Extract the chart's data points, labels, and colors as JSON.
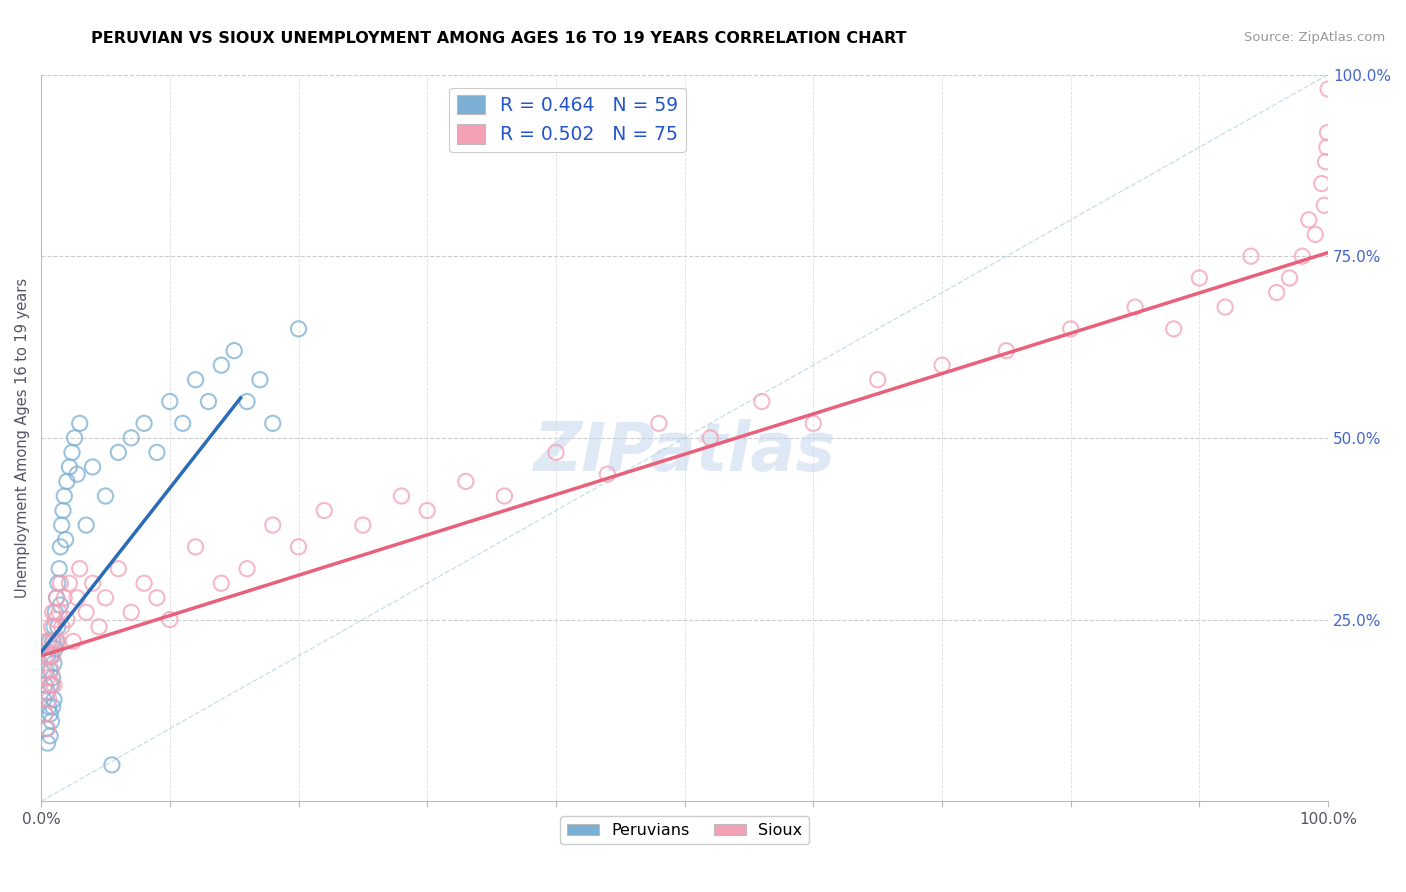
{
  "title": "PERUVIAN VS SIOUX UNEMPLOYMENT AMONG AGES 16 TO 19 YEARS CORRELATION CHART",
  "source_text": "Source: ZipAtlas.com",
  "ylabel": "Unemployment Among Ages 16 to 19 years",
  "xlim": [
    0.0,
    1.0
  ],
  "ylim": [
    0.0,
    1.0
  ],
  "yticks": [
    0.25,
    0.5,
    0.75,
    1.0
  ],
  "ytick_labels": [
    "25.0%",
    "50.0%",
    "75.0%",
    "100.0%"
  ],
  "peruvian_color": "#7BAfd4",
  "sioux_color": "#F4A0B5",
  "peruvian_line_color": "#2B6CB8",
  "sioux_line_color": "#E8607A",
  "watermark": "ZIPatlas",
  "legend_label_1": "R = 0.464   N = 59",
  "legend_label_2": "R = 0.502   N = 75",
  "peruvian_x": [
    0.002,
    0.003,
    0.003,
    0.004,
    0.004,
    0.005,
    0.005,
    0.005,
    0.006,
    0.006,
    0.007,
    0.007,
    0.007,
    0.008,
    0.008,
    0.008,
    0.009,
    0.009,
    0.009,
    0.01,
    0.01,
    0.01,
    0.011,
    0.011,
    0.012,
    0.012,
    0.013,
    0.013,
    0.014,
    0.015,
    0.015,
    0.016,
    0.017,
    0.018,
    0.019,
    0.02,
    0.022,
    0.024,
    0.026,
    0.028,
    0.03,
    0.035,
    0.04,
    0.05,
    0.055,
    0.06,
    0.07,
    0.08,
    0.09,
    0.1,
    0.11,
    0.12,
    0.13,
    0.14,
    0.15,
    0.16,
    0.17,
    0.18,
    0.2
  ],
  "peruvian_y": [
    0.14,
    0.16,
    0.12,
    0.18,
    0.1,
    0.2,
    0.15,
    0.08,
    0.22,
    0.13,
    0.18,
    0.12,
    0.09,
    0.2,
    0.16,
    0.11,
    0.22,
    0.17,
    0.13,
    0.24,
    0.19,
    0.14,
    0.26,
    0.21,
    0.28,
    0.22,
    0.3,
    0.24,
    0.32,
    0.35,
    0.27,
    0.38,
    0.4,
    0.42,
    0.36,
    0.44,
    0.46,
    0.48,
    0.5,
    0.45,
    0.52,
    0.38,
    0.46,
    0.42,
    0.05,
    0.48,
    0.5,
    0.52,
    0.48,
    0.55,
    0.52,
    0.58,
    0.55,
    0.6,
    0.62,
    0.55,
    0.58,
    0.52,
    0.65
  ],
  "sioux_x": [
    0.002,
    0.003,
    0.003,
    0.004,
    0.004,
    0.005,
    0.005,
    0.006,
    0.006,
    0.007,
    0.007,
    0.008,
    0.008,
    0.009,
    0.009,
    0.01,
    0.01,
    0.011,
    0.012,
    0.013,
    0.014,
    0.015,
    0.016,
    0.018,
    0.02,
    0.022,
    0.025,
    0.028,
    0.03,
    0.035,
    0.04,
    0.045,
    0.05,
    0.06,
    0.07,
    0.08,
    0.09,
    0.1,
    0.12,
    0.14,
    0.16,
    0.18,
    0.2,
    0.22,
    0.25,
    0.28,
    0.3,
    0.33,
    0.36,
    0.4,
    0.44,
    0.48,
    0.52,
    0.56,
    0.6,
    0.65,
    0.7,
    0.75,
    0.8,
    0.85,
    0.88,
    0.9,
    0.92,
    0.94,
    0.96,
    0.97,
    0.98,
    0.985,
    0.99,
    0.995,
    0.997,
    0.998,
    0.999,
    0.9995,
    1.0
  ],
  "sioux_y": [
    0.18,
    0.12,
    0.2,
    0.15,
    0.22,
    0.1,
    0.17,
    0.2,
    0.14,
    0.22,
    0.16,
    0.24,
    0.18,
    0.26,
    0.2,
    0.22,
    0.16,
    0.25,
    0.28,
    0.22,
    0.26,
    0.3,
    0.24,
    0.28,
    0.25,
    0.3,
    0.22,
    0.28,
    0.32,
    0.26,
    0.3,
    0.24,
    0.28,
    0.32,
    0.26,
    0.3,
    0.28,
    0.25,
    0.35,
    0.3,
    0.32,
    0.38,
    0.35,
    0.4,
    0.38,
    0.42,
    0.4,
    0.44,
    0.42,
    0.48,
    0.45,
    0.52,
    0.5,
    0.55,
    0.52,
    0.58,
    0.6,
    0.62,
    0.65,
    0.68,
    0.65,
    0.72,
    0.68,
    0.75,
    0.7,
    0.72,
    0.75,
    0.8,
    0.78,
    0.85,
    0.82,
    0.88,
    0.9,
    0.92,
    0.98
  ],
  "peruvian_line_x": [
    0.0,
    0.155
  ],
  "peruvian_line_y": [
    0.205,
    0.555
  ],
  "sioux_line_x": [
    0.0,
    1.0
  ],
  "sioux_line_y": [
    0.2,
    0.755
  ]
}
